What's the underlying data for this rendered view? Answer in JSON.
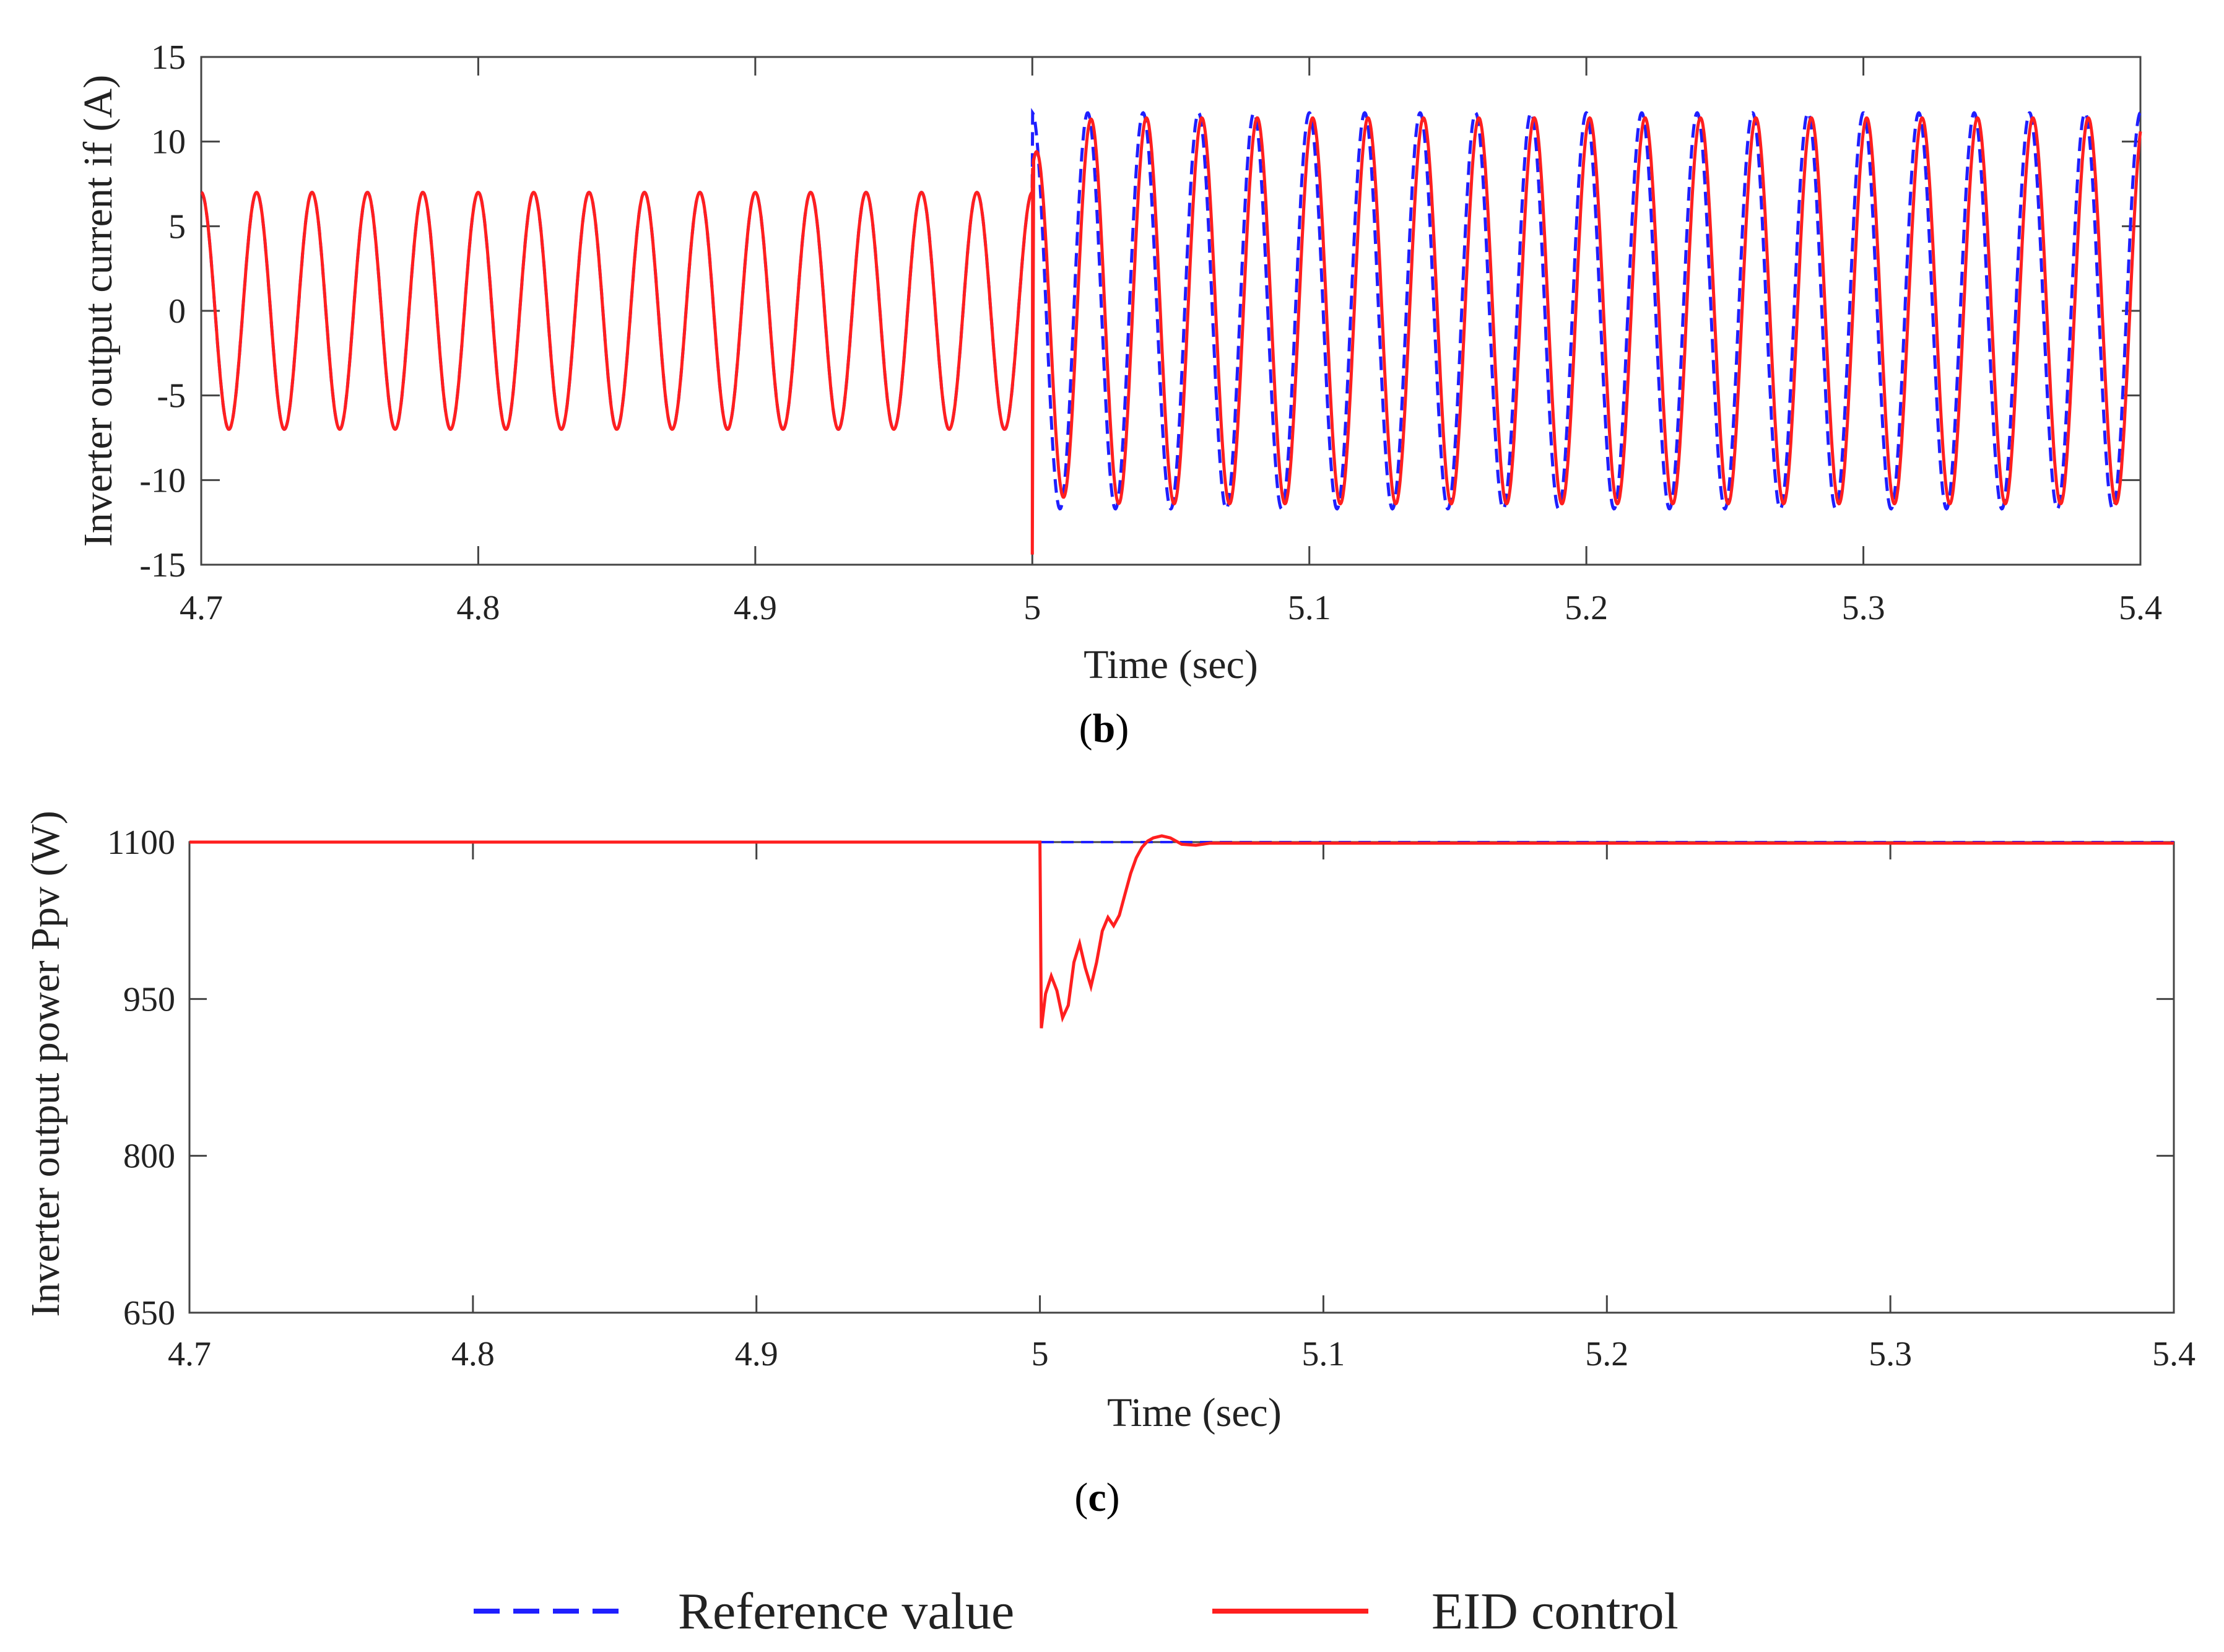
{
  "colors": {
    "reference": "#1f1fff",
    "eid": "#ff1f1f",
    "axis": "#444444"
  },
  "legend": {
    "reference_label": "Reference value",
    "eid_label": "EID control"
  },
  "chart_data": [
    {
      "type": "line",
      "panel_label_open": "(",
      "panel_label_letter": "b",
      "panel_label_close": ")",
      "xlabel": "Time (sec)",
      "ylabel": "Inverter output current  if (A)",
      "xlim": [
        4.7,
        5.4
      ],
      "ylim": [
        -15,
        15
      ],
      "xticks": [
        "4.7",
        "4.8",
        "4.9",
        "5",
        "5.1",
        "5.2",
        "5.3",
        "5.4"
      ],
      "yticks": [
        "15",
        "10",
        "5",
        "0",
        "-5",
        "-10",
        "-15"
      ],
      "grid": false,
      "series": [
        {
          "name": "Reference value",
          "style": "dashed",
          "frequency_hz": 50,
          "segments": [
            {
              "x_start": 4.7,
              "x_end": 5.0,
              "amplitude": 7
            },
            {
              "x_start": 5.0,
              "x_end": 5.4,
              "amplitude": 11.7
            }
          ]
        },
        {
          "name": "EID control",
          "style": "solid",
          "frequency_hz": 50,
          "segments": [
            {
              "x_start": 4.7,
              "x_end": 5.0,
              "amplitude": 7
            },
            {
              "x_start": 5.0,
              "x_end": 5.4,
              "amplitude": 11.4,
              "phase_lag_ms": 1.2
            }
          ],
          "transient_min": -14.4
        }
      ]
    },
    {
      "type": "line",
      "panel_label_open": "(",
      "panel_label_letter": "c",
      "panel_label_close": ")",
      "xlabel": "Time (sec)",
      "ylabel": "Inverter output power  Ppv (W)",
      "xlim": [
        4.7,
        5.4
      ],
      "ylim": [
        650,
        1100
      ],
      "xticks": [
        "4.7",
        "4.8",
        "4.9",
        "5",
        "5.1",
        "5.2",
        "5.3",
        "5.4"
      ],
      "yticks": [
        "1100",
        "950",
        "800",
        "650"
      ],
      "grid": false,
      "series": [
        {
          "name": "Reference value",
          "style": "dashed",
          "x": [
            4.7,
            5.4
          ],
          "y": [
            1100,
            1100
          ]
        },
        {
          "name": "EID control",
          "style": "solid",
          "x": [
            4.7,
            5.0,
            5.0005,
            5.002,
            5.004,
            5.006,
            5.008,
            5.01,
            5.012,
            5.014,
            5.016,
            5.018,
            5.02,
            5.022,
            5.024,
            5.026,
            5.028,
            5.03,
            5.032,
            5.034,
            5.036,
            5.038,
            5.04,
            5.043,
            5.046,
            5.05,
            5.055,
            5.06,
            5.4
          ],
          "y": [
            1100,
            1100,
            922,
            955,
            972,
            958,
            932,
            944,
            985,
            1003,
            980,
            962,
            985,
            1015,
            1028,
            1020,
            1030,
            1050,
            1070,
            1085,
            1095,
            1101,
            1104,
            1106,
            1104,
            1098,
            1097,
            1099,
            1099
          ]
        }
      ]
    }
  ]
}
